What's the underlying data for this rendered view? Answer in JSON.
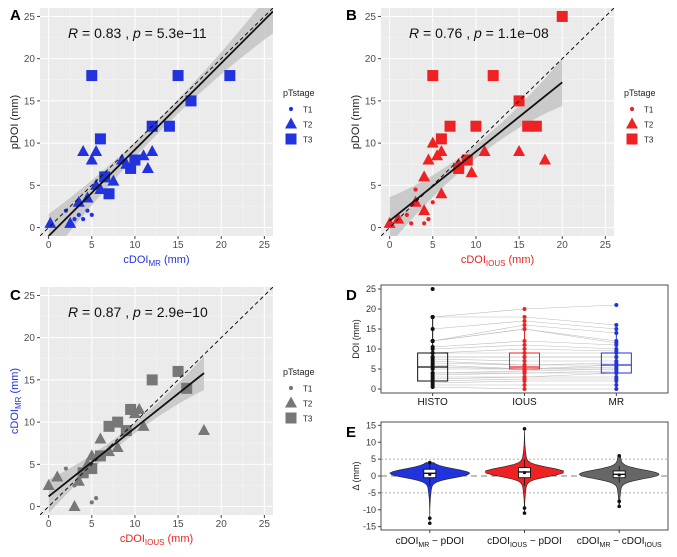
{
  "figure": "Correlation and agreement of depth-of-invasion measurements",
  "chart_data": [
    {
      "panel": "A",
      "type": "scatter",
      "color": "#2233dd",
      "title_italic_stat": {
        "R": "R",
        "R_value": " = 0.83 , ",
        "p": "p",
        "p_value": " = 5.3e−11"
      },
      "xlabel": {
        "main": "cDOI",
        "sub": "MR",
        "unit": " (mm)"
      },
      "xlabel_color": "#2233dd",
      "ylabel": {
        "main": "pDOI (mm)",
        "sub": "",
        "unit": ""
      },
      "ylabel_color": "#222222",
      "xlim": [
        -1,
        26
      ],
      "ylim": [
        -1,
        26
      ],
      "xticks": [
        0,
        5,
        10,
        15,
        20,
        25
      ],
      "yticks": [
        0,
        5,
        10,
        15,
        20,
        25
      ],
      "fit": {
        "x0": 0,
        "x1": 26,
        "y0": -1.0,
        "y1": 25.6,
        "ci_half_width_ends": 2.6,
        "ci_half_width_mid": 0.8
      },
      "legend": {
        "title": "pTstage",
        "entries": [
          "T1",
          "T2",
          "T3"
        ]
      },
      "points": [
        {
          "x": 0.2,
          "y": 0.5,
          "g": "T2"
        },
        {
          "x": 2.5,
          "y": 0.5,
          "g": "T2"
        },
        {
          "x": 3.5,
          "y": 3.0,
          "g": "T2"
        },
        {
          "x": 4.5,
          "y": 3.5,
          "g": "T2"
        },
        {
          "x": 5.0,
          "y": 1.5,
          "g": "T1"
        },
        {
          "x": 5.5,
          "y": 5.0,
          "g": "T2"
        },
        {
          "x": 5.5,
          "y": 9.0,
          "g": "T2"
        },
        {
          "x": 4.0,
          "y": 9.0,
          "g": "T2"
        },
        {
          "x": 5.0,
          "y": 8.0,
          "g": "T2"
        },
        {
          "x": 6.0,
          "y": 10.5,
          "g": "T3"
        },
        {
          "x": 6.5,
          "y": 6.0,
          "g": "T3"
        },
        {
          "x": 7.0,
          "y": 4.0,
          "g": "T3"
        },
        {
          "x": 6.0,
          "y": 4.5,
          "g": "T2"
        },
        {
          "x": 7.5,
          "y": 5.5,
          "g": "T2"
        },
        {
          "x": 8.5,
          "y": 8.0,
          "g": "T2"
        },
        {
          "x": 9.5,
          "y": 7.0,
          "g": "T3"
        },
        {
          "x": 10.0,
          "y": 8.0,
          "g": "T3"
        },
        {
          "x": 11.0,
          "y": 8.5,
          "g": "T2"
        },
        {
          "x": 12.0,
          "y": 9.0,
          "g": "T2"
        },
        {
          "x": 12.0,
          "y": 12.0,
          "g": "T3"
        },
        {
          "x": 14.0,
          "y": 12.0,
          "g": "T3"
        },
        {
          "x": 5.0,
          "y": 18.0,
          "g": "T3"
        },
        {
          "x": 15.0,
          "y": 18.0,
          "g": "T3"
        },
        {
          "x": 16.5,
          "y": 15.0,
          "g": "T3"
        },
        {
          "x": 21.0,
          "y": 18.0,
          "g": "T3"
        },
        {
          "x": 2.0,
          "y": 2.0,
          "g": "T1"
        },
        {
          "x": 3.0,
          "y": 1.0,
          "g": "T1"
        },
        {
          "x": 4.0,
          "y": 1.0,
          "g": "T1"
        },
        {
          "x": 4.5,
          "y": 2.0,
          "g": "T1"
        },
        {
          "x": 3.5,
          "y": 1.5,
          "g": "T1"
        },
        {
          "x": 9.0,
          "y": 7.5,
          "g": "T2"
        },
        {
          "x": 11.5,
          "y": 7.0,
          "g": "T2"
        }
      ]
    },
    {
      "panel": "B",
      "type": "scatter",
      "color": "#ee2222",
      "title_italic_stat": {
        "R": "R",
        "R_value": " = 0.76 , ",
        "p": "p",
        "p_value": " = 1.1e−08"
      },
      "xlabel": {
        "main": "cDOI",
        "sub": "IOUS",
        "unit": " (mm)"
      },
      "xlabel_color": "#ee2222",
      "ylabel": {
        "main": "pDOI (mm)",
        "sub": "",
        "unit": ""
      },
      "ylabel_color": "#222222",
      "xlim": [
        -1,
        26
      ],
      "ylim": [
        -1,
        26
      ],
      "xticks": [
        0,
        5,
        10,
        15,
        20,
        25
      ],
      "yticks": [
        0,
        5,
        10,
        15,
        20,
        25
      ],
      "fit": {
        "x0": 0,
        "x1": 20,
        "y0": 0.8,
        "y1": 17.2,
        "ci_half_width_ends": 2.8,
        "ci_half_width_mid": 0.8
      },
      "legend": {
        "title": "pTstage",
        "entries": [
          "T1",
          "T2",
          "T3"
        ]
      },
      "points": [
        {
          "x": 0.0,
          "y": 0.5,
          "g": "T2"
        },
        {
          "x": 1.0,
          "y": 1.0,
          "g": "T2"
        },
        {
          "x": 2.0,
          "y": 1.5,
          "g": "T1"
        },
        {
          "x": 2.5,
          "y": 0.5,
          "g": "T1"
        },
        {
          "x": 3.0,
          "y": 3.0,
          "g": "T2"
        },
        {
          "x": 4.0,
          "y": 2.0,
          "g": "T2"
        },
        {
          "x": 4.0,
          "y": 6.0,
          "g": "T2"
        },
        {
          "x": 4.5,
          "y": 8.0,
          "g": "T2"
        },
        {
          "x": 5.0,
          "y": 10.0,
          "g": "T2"
        },
        {
          "x": 5.0,
          "y": 18.0,
          "g": "T3"
        },
        {
          "x": 6.0,
          "y": 10.5,
          "g": "T3"
        },
        {
          "x": 6.0,
          "y": 4.0,
          "g": "T2"
        },
        {
          "x": 6.0,
          "y": 9.0,
          "g": "T2"
        },
        {
          "x": 7.0,
          "y": 12.0,
          "g": "T3"
        },
        {
          "x": 8.0,
          "y": 7.0,
          "g": "T3"
        },
        {
          "x": 8.0,
          "y": 7.5,
          "g": "T2"
        },
        {
          "x": 9.0,
          "y": 8.0,
          "g": "T3"
        },
        {
          "x": 10.0,
          "y": 12.0,
          "g": "T3"
        },
        {
          "x": 11.0,
          "y": 9.0,
          "g": "T2"
        },
        {
          "x": 12.0,
          "y": 18.0,
          "g": "T3"
        },
        {
          "x": 15.0,
          "y": 15.0,
          "g": "T3"
        },
        {
          "x": 15.0,
          "y": 9.0,
          "g": "T2"
        },
        {
          "x": 16.0,
          "y": 12.0,
          "g": "T3"
        },
        {
          "x": 17.0,
          "y": 12.0,
          "g": "T3"
        },
        {
          "x": 18.0,
          "y": 8.0,
          "g": "T2"
        },
        {
          "x": 20.0,
          "y": 25.0,
          "g": "T3"
        },
        {
          "x": 3.0,
          "y": 4.5,
          "g": "T1"
        },
        {
          "x": 4.0,
          "y": 0.5,
          "g": "T1"
        },
        {
          "x": 4.5,
          "y": 1.0,
          "g": "T1"
        },
        {
          "x": 5.0,
          "y": 3.0,
          "g": "T1"
        },
        {
          "x": 9.5,
          "y": 6.5,
          "g": "T2"
        },
        {
          "x": 5.5,
          "y": 8.5,
          "g": "T2"
        }
      ]
    },
    {
      "panel": "C",
      "type": "scatter",
      "color": "#777777",
      "title_italic_stat": {
        "R": "R",
        "R_value": " = 0.87 , ",
        "p": "p",
        "p_value": " = 2.9e−10"
      },
      "xlabel": {
        "main": "cDOI",
        "sub": "IOUS",
        "unit": " (mm)"
      },
      "xlabel_color": "#ee2222",
      "ylabel": {
        "main": "cDOI",
        "sub": "MR",
        "unit": " (mm)"
      },
      "ylabel_color": "#2233dd",
      "xlim": [
        -1,
        26
      ],
      "ylim": [
        -1,
        26
      ],
      "xticks": [
        0,
        5,
        10,
        15,
        20,
        25
      ],
      "yticks": [
        0,
        5,
        10,
        15,
        20,
        25
      ],
      "fit": {
        "x0": 0,
        "x1": 18,
        "y0": 1.2,
        "y1": 15.8,
        "ci_half_width_ends": 2.0,
        "ci_half_width_mid": 0.6
      },
      "legend": {
        "title": "pTstage",
        "entries": [
          "T1",
          "T2",
          "T3"
        ]
      },
      "points": [
        {
          "x": 0.0,
          "y": 2.5,
          "g": "T2"
        },
        {
          "x": 1.0,
          "y": 3.5,
          "g": "T2"
        },
        {
          "x": 2.0,
          "y": 4.5,
          "g": "T1"
        },
        {
          "x": 3.0,
          "y": 0.0,
          "g": "T2"
        },
        {
          "x": 3.5,
          "y": 3.0,
          "g": "T2"
        },
        {
          "x": 4.0,
          "y": 4.0,
          "g": "T3"
        },
        {
          "x": 4.5,
          "y": 5.0,
          "g": "T2"
        },
        {
          "x": 5.0,
          "y": 6.0,
          "g": "T2"
        },
        {
          "x": 5.0,
          "y": 4.5,
          "g": "T3"
        },
        {
          "x": 5.5,
          "y": 1.0,
          "g": "T1"
        },
        {
          "x": 6.0,
          "y": 6.0,
          "g": "T3"
        },
        {
          "x": 6.0,
          "y": 8.0,
          "g": "T2"
        },
        {
          "x": 7.0,
          "y": 9.5,
          "g": "T3"
        },
        {
          "x": 8.0,
          "y": 7.0,
          "g": "T2"
        },
        {
          "x": 8.0,
          "y": 10.0,
          "g": "T3"
        },
        {
          "x": 9.0,
          "y": 9.0,
          "g": "T3"
        },
        {
          "x": 9.5,
          "y": 11.5,
          "g": "T3"
        },
        {
          "x": 10.0,
          "y": 11.0,
          "g": "T2"
        },
        {
          "x": 10.5,
          "y": 11.5,
          "g": "T2"
        },
        {
          "x": 12.0,
          "y": 15.0,
          "g": "T3"
        },
        {
          "x": 15.0,
          "y": 16.0,
          "g": "T3"
        },
        {
          "x": 16.0,
          "y": 14.0,
          "g": "T3"
        },
        {
          "x": 18.0,
          "y": 9.0,
          "g": "T2"
        },
        {
          "x": 3.0,
          "y": 2.5,
          "g": "T1"
        },
        {
          "x": 5.0,
          "y": 0.5,
          "g": "T1"
        },
        {
          "x": 7.0,
          "y": 6.5,
          "g": "T2"
        },
        {
          "x": 11.0,
          "y": 9.5,
          "g": "T2"
        }
      ]
    },
    {
      "panel": "D",
      "type": "box",
      "ylabel": "DOI (mm)",
      "ylim": [
        -1,
        26
      ],
      "yticks": [
        0,
        5,
        10,
        15,
        20,
        25
      ],
      "categories": [
        "HISTO",
        "IOUS",
        "MR"
      ],
      "colors": [
        "#111111",
        "#ee2222",
        "#2233dd"
      ],
      "boxes": [
        {
          "q1": 2.0,
          "median": 5.5,
          "q3": 9.0,
          "lo": 0.0,
          "hi": 18.0,
          "points": [
            0.5,
            1,
            1.5,
            2,
            2.5,
            3,
            3.5,
            4,
            4,
            5,
            5.5,
            6,
            6.5,
            7,
            7.5,
            8,
            8,
            9,
            9,
            10,
            10.5,
            12,
            12,
            12,
            15,
            18,
            18,
            18,
            25
          ]
        },
        {
          "q1": 5.0,
          "median": 5.5,
          "q3": 9.0,
          "lo": 0.0,
          "hi": 17.0,
          "points": [
            0,
            1,
            2,
            2.5,
            3,
            3,
            4,
            4,
            4.5,
            5,
            5,
            5,
            6,
            6,
            7,
            8,
            8,
            9,
            10,
            11,
            12,
            15,
            15,
            16,
            17,
            18,
            20
          ]
        },
        {
          "q1": 4.0,
          "median": 6.0,
          "q3": 9.0,
          "lo": 0.0,
          "hi": 15.0,
          "points": [
            0,
            1,
            2,
            2.5,
            3,
            4,
            4,
            4.5,
            5,
            5,
            5.5,
            6,
            6,
            6.5,
            7,
            8,
            8,
            9,
            9.5,
            10,
            11,
            11.5,
            12,
            14,
            15,
            16,
            21
          ]
        }
      ]
    },
    {
      "panel": "E",
      "type": "violin",
      "ylabel": "Δ (mm)",
      "ylim": [
        -16,
        16
      ],
      "yticks": [
        -15,
        -10,
        -5,
        0,
        5,
        10,
        15
      ],
      "reference_lines": [
        -5,
        0,
        5
      ],
      "categories": [
        {
          "main": "cDOI",
          "sub": "MR",
          "rest": " − pDOI",
          "sub2": ""
        },
        {
          "main": "cDOI",
          "sub": "IOUS",
          "rest": " − pDOI",
          "sub2": ""
        },
        {
          "main": "cDOI",
          "sub": "MR",
          "rest": " − cDOI",
          "sub2": "IOUS"
        }
      ],
      "colors": [
        "#2233dd",
        "#ee2222",
        "#666666"
      ],
      "violins": [
        {
          "min": -14,
          "max": 4,
          "q1": -0.5,
          "median": 0.8,
          "q3": 2.0,
          "wlo": -3,
          "whi": 4,
          "mean": 0.5
        },
        {
          "min": -11,
          "max": 14,
          "q1": -0.5,
          "median": 1.2,
          "q3": 2.5,
          "wlo": -3,
          "whi": 5,
          "mean": 1.0
        },
        {
          "min": -9,
          "max": 6,
          "q1": -0.5,
          "median": 0.5,
          "q3": 1.5,
          "wlo": -2,
          "whi": 3,
          "mean": 0.3
        }
      ]
    }
  ]
}
